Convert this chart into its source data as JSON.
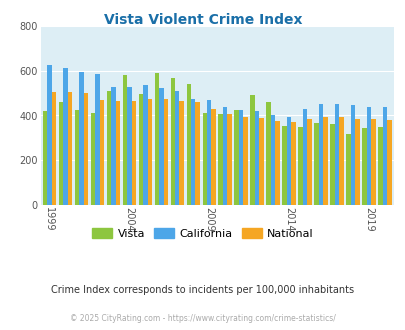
{
  "title": "Vista Violent Crime Index",
  "title_color": "#1a6fa8",
  "subtitle": "Crime Index corresponds to incidents per 100,000 inhabitants",
  "subtitle_color": "#333333",
  "footer": "© 2025 CityRating.com - https://www.cityrating.com/crime-statistics/",
  "footer_color": "#aaaaaa",
  "years": [
    1999,
    2000,
    2001,
    2002,
    2003,
    2004,
    2005,
    2006,
    2007,
    2008,
    2009,
    2010,
    2011,
    2012,
    2013,
    2014,
    2015,
    2016,
    2017,
    2018,
    2019,
    2020
  ],
  "xtick_labels": [
    "1999",
    "2004",
    "2009",
    "2014",
    "2019"
  ],
  "xtick_positions": [
    1999,
    2004,
    2009,
    2014,
    2019
  ],
  "vista": [
    420,
    460,
    425,
    410,
    510,
    580,
    495,
    590,
    570,
    540,
    410,
    405,
    425,
    490,
    460,
    355,
    350,
    365,
    360,
    315,
    345,
    350
  ],
  "california": [
    625,
    615,
    595,
    585,
    530,
    530,
    535,
    525,
    510,
    475,
    470,
    440,
    425,
    420,
    400,
    395,
    430,
    450,
    450,
    445,
    440,
    440
  ],
  "national": [
    505,
    505,
    500,
    470,
    465,
    465,
    475,
    475,
    465,
    460,
    430,
    405,
    395,
    390,
    375,
    370,
    385,
    395,
    395,
    385,
    385,
    380
  ],
  "vista_color": "#8dc63f",
  "california_color": "#4da6e8",
  "national_color": "#f5a623",
  "bg_color": "#ddeef5",
  "fig_bg_color": "#ffffff",
  "ylim": [
    0,
    800
  ],
  "yticks": [
    0,
    200,
    400,
    600,
    800
  ],
  "bar_width": 0.28,
  "legend_labels": [
    "Vista",
    "California",
    "National"
  ]
}
